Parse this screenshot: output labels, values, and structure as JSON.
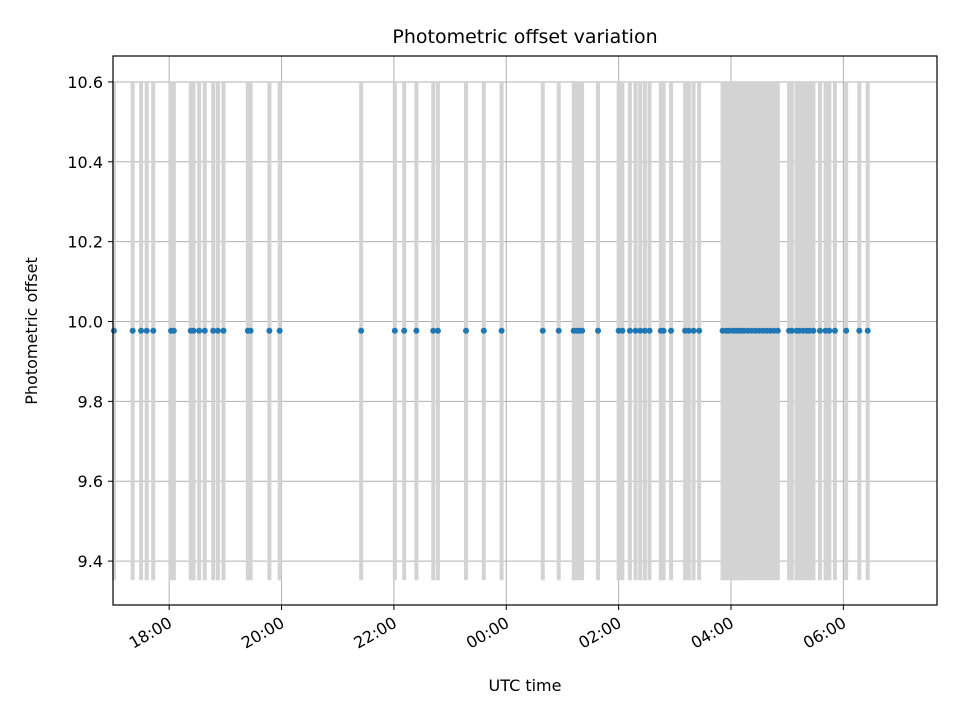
{
  "chart_data": {
    "type": "scatter",
    "title": "Photometric offset variation",
    "xlabel": "UTC time",
    "ylabel": "Photometric offset",
    "grid": true,
    "x_ticks": [
      "18:00",
      "20:00",
      "22:00",
      "00:00",
      "02:00",
      "04:00",
      "06:00"
    ],
    "y_ticks": [
      "9.4",
      "9.6",
      "9.8",
      "10.0",
      "10.2",
      "10.4",
      "10.6"
    ],
    "xlim": [
      "17:00",
      "07:40"
    ],
    "ylim": [
      9.29,
      10.665
    ],
    "colors": {
      "points": "#1f77b4",
      "errorbars": "#d3d3d3",
      "grid": "#b0b0b0"
    },
    "series": [
      {
        "y": 9.977,
        "yerr": 0.625,
        "x": [
          "17:01",
          "17:21",
          "17:30",
          "17:36",
          "17:43",
          "18:02",
          "18:05",
          "18:23",
          "18:26",
          "18:32",
          "18:38",
          "18:47",
          "18:52",
          "18:58",
          "19:24",
          "19:27",
          "19:47",
          "19:58",
          "21:25",
          "22:01",
          "22:11",
          "22:24",
          "22:42",
          "22:47",
          "23:17",
          "23:36",
          "23:55",
          "00:39",
          "00:56",
          "01:12",
          "01:15",
          "01:18",
          "01:21",
          "01:38",
          "02:00",
          "02:04",
          "02:12",
          "02:18",
          "02:23",
          "02:28",
          "02:33",
          "02:45",
          "02:48",
          "02:56",
          "03:11",
          "03:15",
          "03:20",
          "03:26",
          "03:51",
          "03:55",
          "03:58",
          "04:02",
          "04:05",
          "04:08",
          "04:11",
          "04:14",
          "04:18",
          "04:22",
          "04:26",
          "04:30",
          "04:34",
          "04:38",
          "04:42",
          "04:46",
          "04:50",
          "05:02",
          "05:05",
          "05:10",
          "05:13",
          "05:17",
          "05:21",
          "05:24",
          "05:28",
          "05:35",
          "05:41",
          "05:45",
          "05:51",
          "06:03",
          "06:17",
          "06:26"
        ]
      }
    ]
  }
}
